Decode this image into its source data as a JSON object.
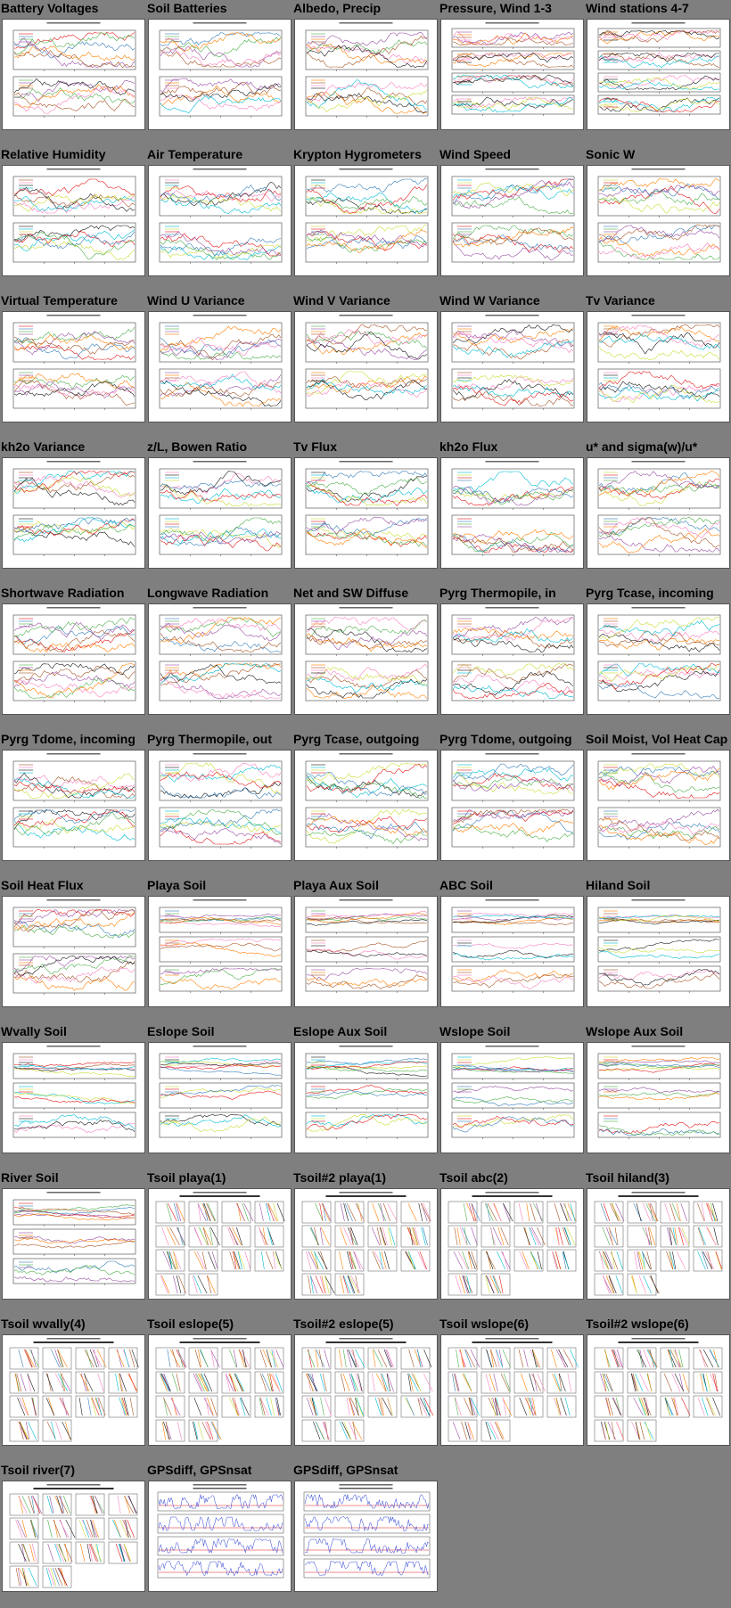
{
  "page": {
    "background": "#7f7f7f"
  },
  "plots": [
    {
      "title": "Battery Voltages",
      "kind": "two"
    },
    {
      "title": "Soil Batteries",
      "kind": "two"
    },
    {
      "title": "Albedo, Precip",
      "kind": "two"
    },
    {
      "title": "Pressure, Wind 1-3",
      "kind": "four"
    },
    {
      "title": "Wind stations 4-7",
      "kind": "four"
    },
    {
      "title": "Relative Humidity",
      "kind": "two"
    },
    {
      "title": "Air Temperature",
      "kind": "two"
    },
    {
      "title": "Krypton Hygrometers",
      "kind": "two"
    },
    {
      "title": "Wind Speed",
      "kind": "two"
    },
    {
      "title": "Sonic W",
      "kind": "two"
    },
    {
      "title": "Virtual Temperature",
      "kind": "two"
    },
    {
      "title": "Wind U Variance",
      "kind": "two"
    },
    {
      "title": "Wind V Variance",
      "kind": "two"
    },
    {
      "title": "Wind W Variance",
      "kind": "two"
    },
    {
      "title": "Tv Variance",
      "kind": "two"
    },
    {
      "title": "kh2o Variance",
      "kind": "two"
    },
    {
      "title": "z/L, Bowen Ratio",
      "kind": "two"
    },
    {
      "title": "Tv Flux",
      "kind": "two"
    },
    {
      "title": "kh2o Flux",
      "kind": "two"
    },
    {
      "title": "u* and sigma(w)/u*",
      "kind": "two"
    },
    {
      "title": "Shortwave Radiation",
      "kind": "two"
    },
    {
      "title": "Longwave Radiation",
      "kind": "two"
    },
    {
      "title": "Net and SW Diffuse",
      "kind": "two"
    },
    {
      "title": "Pyrg Thermopile, in",
      "kind": "two"
    },
    {
      "title": "Pyrg Tcase, incoming",
      "kind": "two"
    },
    {
      "title": "Pyrg Tdome, incoming",
      "kind": "two"
    },
    {
      "title": "Pyrg Thermopile, out",
      "kind": "two"
    },
    {
      "title": "Pyrg Tcase, outgoing",
      "kind": "two"
    },
    {
      "title": "Pyrg Tdome, outgoing",
      "kind": "two"
    },
    {
      "title": "Soil Moist, Vol Heat Cap",
      "kind": "two"
    },
    {
      "title": "Soil Heat Flux",
      "kind": "two"
    },
    {
      "title": "Playa Soil",
      "kind": "three"
    },
    {
      "title": "Playa Aux Soil",
      "kind": "three"
    },
    {
      "title": "ABC Soil",
      "kind": "three"
    },
    {
      "title": "Hiland Soil",
      "kind": "three"
    },
    {
      "title": "Wvally Soil",
      "kind": "three"
    },
    {
      "title": "Eslope Soil",
      "kind": "three"
    },
    {
      "title": "Eslope Aux Soil",
      "kind": "three"
    },
    {
      "title": "Wslope Soil",
      "kind": "three"
    },
    {
      "title": "Wslope Aux Soil",
      "kind": "three"
    },
    {
      "title": "River Soil",
      "kind": "three"
    },
    {
      "title": "Tsoil playa(1)",
      "kind": "tsoil"
    },
    {
      "title": "Tsoil#2 playa(1)",
      "kind": "tsoil"
    },
    {
      "title": "Tsoil abc(2)",
      "kind": "tsoil"
    },
    {
      "title": "Tsoil hiland(3)",
      "kind": "tsoil"
    },
    {
      "title": "Tsoil wvally(4)",
      "kind": "tsoil"
    },
    {
      "title": "Tsoil eslope(5)",
      "kind": "tsoil"
    },
    {
      "title": "Tsoil#2 eslope(5)",
      "kind": "tsoil"
    },
    {
      "title": "Tsoil wslope(6)",
      "kind": "tsoil"
    },
    {
      "title": "Tsoil#2 wslope(6)",
      "kind": "tsoil"
    },
    {
      "title": "Tsoil river(7)",
      "kind": "tsoil"
    },
    {
      "title": "GPSdiff, GPSnsat",
      "kind": "gps"
    },
    {
      "title": "GPSdiff, GPSnsat",
      "kind": "gps"
    }
  ],
  "colors": {
    "trace": [
      "#e41a1c",
      "#377eb8",
      "#4daf4a",
      "#984ea3",
      "#ff7f00",
      "#a65628",
      "#f781bf",
      "#1a1a1a",
      "#00bcd4",
      "#cddc39"
    ],
    "gps_line": "#2b3fd6",
    "gps_ref": "#e41a1c"
  }
}
